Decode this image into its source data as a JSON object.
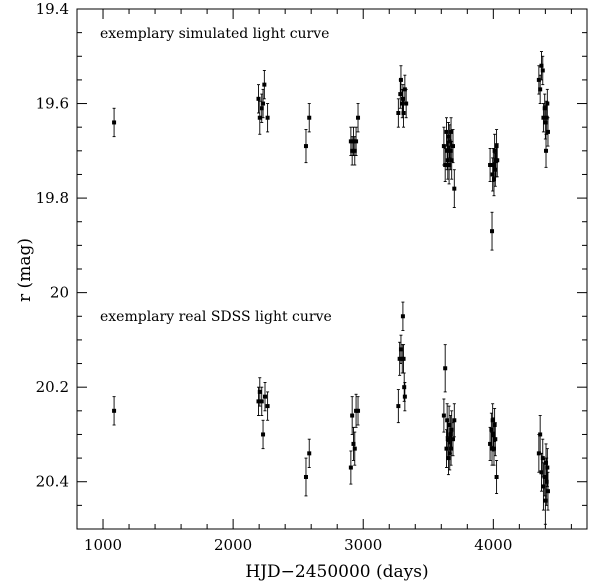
{
  "chart_data": {
    "type": "scatter",
    "xlabel": "HJD−2450000 (days)",
    "ylabel": "r (mag)",
    "xlim": [
      800,
      4720
    ],
    "ylim": [
      19.4,
      20.5
    ],
    "y_inverted": true,
    "x_ticks": [
      1000,
      2000,
      3000,
      4000
    ],
    "x_tick_labels": [
      "1000",
      "2000",
      "3000",
      "4000"
    ],
    "y_ticks": [
      19.4,
      19.6,
      19.8,
      20.0,
      20.2,
      20.4
    ],
    "y_tick_labels": [
      "19.4",
      "19.6",
      "19.8",
      "20",
      "20.2",
      "20.4"
    ],
    "annotations": [
      "exemplary simulated light curve",
      "exemplary real SDSS light curve"
    ],
    "error_bars": true,
    "grid": false,
    "series": [
      {
        "points": [
          [
            1085,
            19.64,
            0.03
          ],
          [
            2195,
            19.59,
            0.03
          ],
          [
            2205,
            19.63,
            0.035
          ],
          [
            2220,
            19.61,
            0.03
          ],
          [
            2230,
            19.6,
            0.03
          ],
          [
            2240,
            19.56,
            0.03
          ],
          [
            2265,
            19.63,
            0.03
          ],
          [
            2560,
            19.69,
            0.035
          ],
          [
            2585,
            19.63,
            0.03
          ],
          [
            2905,
            19.68,
            0.03
          ],
          [
            2915,
            19.7,
            0.03
          ],
          [
            2925,
            19.68,
            0.03
          ],
          [
            2935,
            19.7,
            0.03
          ],
          [
            2945,
            19.68,
            0.03
          ],
          [
            2960,
            19.63,
            0.03
          ],
          [
            3270,
            19.62,
            0.03
          ],
          [
            3285,
            19.58,
            0.03
          ],
          [
            3290,
            19.55,
            0.03
          ],
          [
            3300,
            19.6,
            0.03
          ],
          [
            3305,
            19.59,
            0.03
          ],
          [
            3310,
            19.62,
            0.03
          ],
          [
            3320,
            19.57,
            0.03
          ],
          [
            3330,
            19.6,
            0.03
          ],
          [
            3620,
            19.69,
            0.04
          ],
          [
            3630,
            19.73,
            0.035
          ],
          [
            3640,
            19.66,
            0.03
          ],
          [
            3645,
            19.7,
            0.04
          ],
          [
            3650,
            19.72,
            0.04
          ],
          [
            3655,
            19.67,
            0.03
          ],
          [
            3660,
            19.73,
            0.04
          ],
          [
            3665,
            19.68,
            0.035
          ],
          [
            3670,
            19.7,
            0.04
          ],
          [
            3675,
            19.66,
            0.03
          ],
          [
            3680,
            19.72,
            0.04
          ],
          [
            3690,
            19.69,
            0.035
          ],
          [
            3700,
            19.78,
            0.04
          ],
          [
            3975,
            19.73,
            0.035
          ],
          [
            3990,
            19.87,
            0.04
          ],
          [
            3995,
            19.75,
            0.035
          ],
          [
            4000,
            19.73,
            0.035
          ],
          [
            4005,
            19.76,
            0.035
          ],
          [
            4010,
            19.7,
            0.035
          ],
          [
            4015,
            19.74,
            0.035
          ],
          [
            4020,
            19.72,
            0.035
          ],
          [
            4025,
            19.69,
            0.035
          ],
          [
            4030,
            19.72,
            0.035
          ],
          [
            4350,
            19.55,
            0.03
          ],
          [
            4360,
            19.57,
            0.03
          ],
          [
            4370,
            19.52,
            0.03
          ],
          [
            4380,
            19.53,
            0.03
          ],
          [
            4385,
            19.63,
            0.03
          ],
          [
            4395,
            19.61,
            0.03
          ],
          [
            4400,
            19.64,
            0.035
          ],
          [
            4405,
            19.7,
            0.035
          ],
          [
            4410,
            19.63,
            0.035
          ],
          [
            4415,
            19.6,
            0.03
          ],
          [
            4420,
            19.66,
            0.03
          ]
        ]
      },
      {
        "points": [
          [
            1085,
            20.25,
            0.03
          ],
          [
            2195,
            20.23,
            0.03
          ],
          [
            2205,
            20.21,
            0.03
          ],
          [
            2220,
            20.23,
            0.03
          ],
          [
            2230,
            20.3,
            0.03
          ],
          [
            2245,
            20.22,
            0.03
          ],
          [
            2265,
            20.24,
            0.03
          ],
          [
            2560,
            20.39,
            0.04
          ],
          [
            2585,
            20.34,
            0.03
          ],
          [
            2905,
            20.37,
            0.035
          ],
          [
            2915,
            20.26,
            0.04
          ],
          [
            2925,
            20.32,
            0.035
          ],
          [
            2935,
            20.33,
            0.035
          ],
          [
            2945,
            20.25,
            0.035
          ],
          [
            2960,
            20.25,
            0.03
          ],
          [
            3270,
            20.24,
            0.035
          ],
          [
            3280,
            20.14,
            0.035
          ],
          [
            3290,
            20.12,
            0.03
          ],
          [
            3300,
            20.14,
            0.03
          ],
          [
            3305,
            20.05,
            0.03
          ],
          [
            3310,
            20.14,
            0.03
          ],
          [
            3315,
            20.2,
            0.03
          ],
          [
            3320,
            20.22,
            0.03
          ],
          [
            3620,
            20.26,
            0.035
          ],
          [
            3630,
            20.16,
            0.05
          ],
          [
            3640,
            20.33,
            0.04
          ],
          [
            3645,
            20.27,
            0.035
          ],
          [
            3650,
            20.31,
            0.04
          ],
          [
            3655,
            20.35,
            0.035
          ],
          [
            3660,
            20.28,
            0.04
          ],
          [
            3665,
            20.34,
            0.035
          ],
          [
            3670,
            20.3,
            0.04
          ],
          [
            3675,
            20.33,
            0.035
          ],
          [
            3680,
            20.29,
            0.04
          ],
          [
            3690,
            20.31,
            0.035
          ],
          [
            3700,
            20.27,
            0.035
          ],
          [
            3975,
            20.32,
            0.035
          ],
          [
            3985,
            20.29,
            0.035
          ],
          [
            3990,
            20.33,
            0.035
          ],
          [
            3995,
            20.27,
            0.035
          ],
          [
            4000,
            20.3,
            0.035
          ],
          [
            4005,
            20.33,
            0.035
          ],
          [
            4010,
            20.28,
            0.035
          ],
          [
            4015,
            20.31,
            0.035
          ],
          [
            4025,
            20.39,
            0.035
          ],
          [
            4350,
            20.34,
            0.04
          ],
          [
            4360,
            20.3,
            0.04
          ],
          [
            4370,
            20.38,
            0.04
          ],
          [
            4380,
            20.35,
            0.04
          ],
          [
            4385,
            20.41,
            0.05
          ],
          [
            4395,
            20.39,
            0.04
          ],
          [
            4400,
            20.44,
            0.05
          ],
          [
            4405,
            20.36,
            0.04
          ],
          [
            4410,
            20.4,
            0.05
          ],
          [
            4415,
            20.37,
            0.04
          ],
          [
            4420,
            20.42,
            0.04
          ]
        ]
      }
    ]
  }
}
